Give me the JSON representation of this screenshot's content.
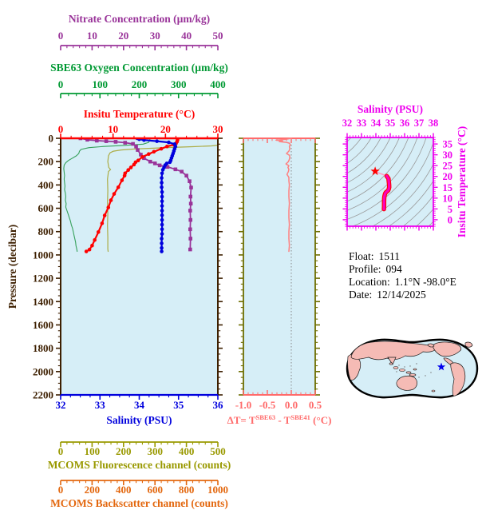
{
  "figure": {
    "bg": "#FFFFFF",
    "plot_bg": "#D6EEF7"
  },
  "info_panel": {
    "float_label": "Float:",
    "float_value": "1511",
    "profile_label": "Profile:",
    "profile_value": "094",
    "location_label": "Location:",
    "location_value": "1.1°N  -98.0°E",
    "date_label": "Date:",
    "date_value": "12/14/2025"
  },
  "axes": {
    "nitrate": {
      "title": "Nitrate Concentration (µm/kg)",
      "color": "#993399",
      "ticks": [
        0,
        10,
        20,
        30,
        40,
        50
      ],
      "minor_step": 2,
      "range": [
        0,
        50
      ]
    },
    "oxygen": {
      "title": "SBE63 Oxygen Concentration (µm/kg)",
      "color": "#009933",
      "ticks": [
        0,
        100,
        200,
        300,
        400
      ],
      "minor_step": 20,
      "range": [
        0,
        400
      ]
    },
    "temperature": {
      "title": "Insitu Temperature (°C)",
      "color": "#FF0000",
      "ticks": [
        0,
        10,
        20,
        30
      ],
      "minor_step": 2,
      "range": [
        0,
        30
      ]
    },
    "pressure": {
      "title": "Pressure (decibar)",
      "color": "#3D1F00",
      "ticks": [
        0,
        200,
        400,
        600,
        800,
        1000,
        1200,
        1400,
        1600,
        1800,
        2000,
        2200
      ],
      "minor_step": 50,
      "range": [
        0,
        2200
      ]
    },
    "salinity": {
      "title": "Salinity (PSU)",
      "color": "#0000DD",
      "ticks": [
        32,
        33,
        34,
        35,
        36
      ],
      "minor_step": 0.25,
      "range": [
        32,
        36
      ]
    },
    "fluorescence": {
      "title": "MCOMS Fluorescence channel (counts)",
      "color": "#999900",
      "ticks": [
        0,
        100,
        200,
        300,
        400,
        500
      ],
      "minor_step": 20,
      "range": [
        0,
        500
      ]
    },
    "backscatter": {
      "title": "MCOMS Backscatter channel (counts)",
      "color": "#E3670E",
      "ticks": [
        0,
        200,
        400,
        600,
        800,
        1000
      ],
      "minor_step": 40,
      "range": [
        0,
        1000
      ]
    },
    "delta_t": {
      "title_parts": [
        "ΔT= T",
        "SBE63",
        " - T",
        "SBE41",
        " (°C)"
      ],
      "color": "#FF6B6B",
      "frame_color": "#6E6E00",
      "tick_labels": [
        "-1.0",
        "-0.5",
        "0.0",
        "0.5"
      ],
      "tick_values": [
        -1,
        -0.5,
        0,
        0.5
      ],
      "minor_step": 0.1,
      "range": [
        -1,
        0.5
      ]
    },
    "ts_salinity": {
      "title": "Salinity (PSU)",
      "color": "#EE00EE",
      "ticks": [
        32,
        33,
        34,
        35,
        36,
        37,
        38
      ],
      "minor_step": 0.2,
      "range": [
        32,
        38
      ]
    },
    "ts_temperature": {
      "title": "Insitu Temperature (°C)",
      "color": "#EE00EE",
      "ticks": [
        0,
        5,
        10,
        15,
        20,
        25,
        30,
        35
      ],
      "minor_step": 1,
      "range": [
        -3,
        38
      ]
    }
  },
  "map": {
    "star_symbol": "★",
    "star_color": "#0000EE",
    "land_color": "#F5BBB5",
    "ocean_color": "#D6EEF7"
  },
  "chart_data": [
    {
      "id": "temperature_profile",
      "type": "line",
      "x_axis": "temperature",
      "xlabel": "Insitu Temperature (°C)",
      "ylabel": "Pressure (decibar)",
      "color": "#FF0000",
      "marker": "circle",
      "pressure": [
        0,
        15,
        30,
        45,
        55,
        70,
        90,
        115,
        135,
        160,
        190,
        205,
        225,
        250,
        272,
        300,
        320,
        360,
        420,
        477,
        531,
        593,
        661,
        729,
        804,
        872,
        920,
        954,
        970
      ],
      "values": [
        22.3,
        22.3,
        22.2,
        22.0,
        21.6,
        20.3,
        19.2,
        17.8,
        16.8,
        15.6,
        14.8,
        14.3,
        14.0,
        13.4,
        12.9,
        12.3,
        12.2,
        11.7,
        11.0,
        10.2,
        9.6,
        9.1,
        8.4,
        7.9,
        7.2,
        6.5,
        6.0,
        5.5,
        4.9
      ]
    },
    {
      "id": "salinity_profile",
      "type": "line",
      "x_axis": "salinity",
      "xlabel": "Salinity (PSU)",
      "ylabel": "Pressure (decibar)",
      "color": "#0000DD",
      "marker": "circle",
      "pressure": [
        0,
        8,
        15,
        25,
        35,
        50,
        70,
        90,
        110,
        130,
        150,
        170,
        190,
        205,
        215,
        230,
        250,
        270,
        300,
        340,
        380,
        420,
        460,
        500,
        540,
        580,
        620,
        660,
        700,
        740,
        780,
        820,
        860,
        900,
        940,
        970
      ],
      "values": [
        33.95,
        34.0,
        34.12,
        34.45,
        34.75,
        34.9,
        34.92,
        34.9,
        34.88,
        34.86,
        34.84,
        34.82,
        34.8,
        34.78,
        34.7,
        34.66,
        34.63,
        34.6,
        34.58,
        34.57,
        34.57,
        34.57,
        34.58,
        34.58,
        34.58,
        34.58,
        34.58,
        34.58,
        34.58,
        34.58,
        34.58,
        34.58,
        34.57,
        34.57,
        34.57,
        34.57
      ]
    },
    {
      "id": "nitrate_profile",
      "type": "line",
      "x_axis": "nitrate",
      "xlabel": "Nitrate Concentration (µm/kg)",
      "ylabel": "Pressure (decibar)",
      "color": "#993399",
      "marker": "square",
      "pressure": [
        0,
        12,
        20,
        25,
        30,
        38,
        48,
        70,
        100,
        140,
        170,
        200,
        215,
        232,
        245,
        266,
        286,
        320,
        368,
        422,
        500,
        560,
        620,
        700,
        780,
        860,
        953
      ],
      "values": [
        6.3,
        8.5,
        11.5,
        14.5,
        17.5,
        20.5,
        23.0,
        24.0,
        24.5,
        25.5,
        26.5,
        28.5,
        30.0,
        31.5,
        34.0,
        36.5,
        38.5,
        40.0,
        41.0,
        41.5,
        41.3,
        41.4,
        41.2,
        41.3,
        41.2,
        41.3,
        41.2
      ]
    },
    {
      "id": "oxygen_profile",
      "type": "line",
      "x_axis": "oxygen",
      "xlabel": "SBE63 Oxygen Concentration (µm/kg)",
      "ylabel": "Pressure (decibar)",
      "color": "#35A05A",
      "marker": "none",
      "pressure": [
        0,
        20,
        35,
        50,
        60,
        70,
        80,
        95,
        110,
        130,
        150,
        170,
        190,
        210,
        230,
        260,
        290,
        320,
        350,
        380,
        410,
        440,
        470,
        500,
        530,
        560,
        590,
        620,
        650,
        680,
        710,
        740,
        770,
        800,
        830,
        860,
        890,
        920,
        950,
        970
      ],
      "values": [
        228,
        226,
        224,
        210,
        165,
        110,
        72,
        52,
        48,
        46,
        40,
        30,
        20,
        13,
        9,
        8,
        9,
        10,
        9,
        10,
        11,
        10,
        12,
        13,
        12,
        14,
        13,
        16,
        19,
        22,
        25,
        27,
        30,
        32,
        34,
        36,
        38,
        39,
        41,
        42
      ]
    },
    {
      "id": "fluorescence_profile",
      "type": "line",
      "x_axis": "fluorescence",
      "xlabel": "MCOMS Fluorescence channel (counts)",
      "ylabel": "Pressure (decibar)",
      "color": "#ACAC45",
      "marker": "none",
      "pressure": [
        0,
        30,
        55,
        65,
        72,
        78,
        85,
        92,
        100,
        110,
        125,
        150,
        200,
        250,
        268,
        285,
        350,
        450,
        550,
        650,
        750,
        850,
        950,
        970
      ],
      "values": [
        520,
        520,
        515,
        480,
        420,
        355,
        295,
        235,
        192,
        168,
        157,
        152,
        150,
        153,
        159,
        152,
        149,
        150,
        149,
        150,
        149,
        150,
        150,
        151
      ]
    },
    {
      "id": "delta_t_profile",
      "type": "line",
      "xlabel": "ΔT= T(SBE63) - T(SBE41) (°C)",
      "ylabel": "Pressure (decibar)",
      "color": "#FF8080",
      "marker": "none",
      "xlim": [
        -1.0,
        0.5
      ],
      "pressure": [
        0,
        8,
        15,
        22,
        28,
        35,
        42,
        55,
        70,
        90,
        110,
        130,
        145,
        160,
        180,
        200,
        220,
        235,
        250,
        265,
        285,
        310,
        335,
        365,
        400,
        450,
        500,
        560,
        620,
        680,
        740,
        800,
        860,
        920,
        970
      ],
      "values": [
        0.0,
        -0.1,
        -0.32,
        -0.18,
        -0.25,
        -0.1,
        -0.04,
        -0.02,
        -0.04,
        -0.03,
        -0.05,
        -0.1,
        -0.04,
        -0.03,
        -0.04,
        -0.06,
        -0.11,
        -0.05,
        -0.07,
        -0.05,
        -0.06,
        -0.09,
        -0.05,
        -0.05,
        -0.04,
        -0.05,
        -0.05,
        -0.04,
        -0.05,
        -0.05,
        -0.04,
        -0.05,
        -0.05,
        -0.04,
        -0.05
      ]
    },
    {
      "id": "ts_diagram",
      "type": "line",
      "xlabel": "Salinity (PSU)",
      "ylabel": "Insitu Temperature (°C)",
      "color": "#FF00BB",
      "thin_color": "#FF9EC8",
      "thin_points": 4,
      "salinity": [
        33.95,
        34.12,
        34.45,
        34.75,
        34.88,
        34.9,
        34.92,
        34.93,
        34.9,
        34.86,
        34.8,
        34.72,
        34.66,
        34.62,
        34.59,
        34.58,
        34.57,
        34.57,
        34.57,
        34.56
      ],
      "temperature": [
        22.4,
        21.8,
        21.0,
        20.2,
        19.0,
        17.6,
        16.2,
        15.0,
        14.2,
        13.6,
        13.2,
        12.8,
        12.3,
        11.6,
        10.6,
        9.6,
        8.5,
        7.4,
        6.2,
        4.9
      ],
      "star": {
        "salinity": 33.95,
        "temperature": 22.4,
        "color": "#FF0000"
      }
    }
  ]
}
